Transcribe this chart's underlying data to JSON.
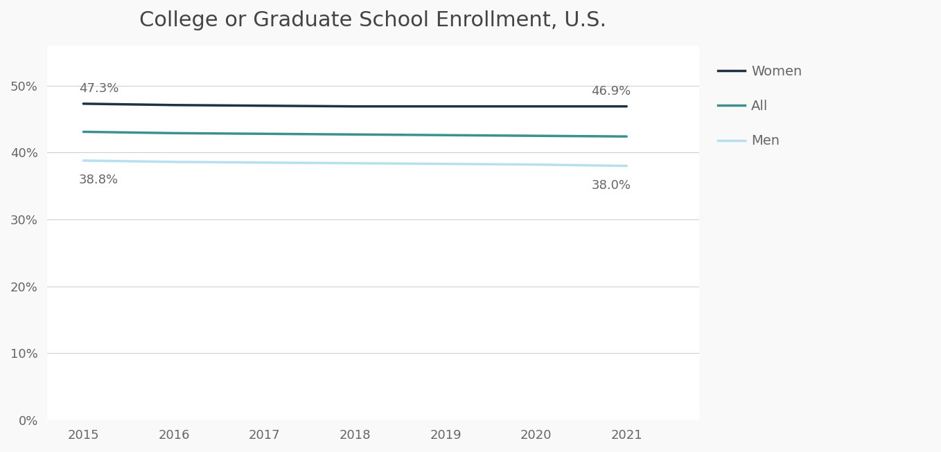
{
  "title": "College or Graduate School Enrollment, U.S.",
  "years": [
    2015,
    2016,
    2017,
    2018,
    2019,
    2020,
    2021
  ],
  "series_order": [
    "Women",
    "All",
    "Men"
  ],
  "series": {
    "Women": {
      "values": [
        0.473,
        0.471,
        0.47,
        0.469,
        0.469,
        0.469,
        0.469
      ],
      "color": "#1c3345",
      "linewidth": 2.5,
      "label": "Women",
      "start_label": "47.3%",
      "end_label": "46.9%"
    },
    "All": {
      "values": [
        0.431,
        0.429,
        0.428,
        0.427,
        0.426,
        0.425,
        0.424
      ],
      "color": "#3d9090",
      "linewidth": 2.5,
      "label": "All",
      "start_label": null,
      "end_label": null
    },
    "Men": {
      "values": [
        0.388,
        0.386,
        0.385,
        0.384,
        0.383,
        0.382,
        0.38
      ],
      "color": "#b8dff0",
      "linewidth": 2.5,
      "label": "Men",
      "start_label": "38.8%",
      "end_label": "38.0%"
    }
  },
  "ylim": [
    0,
    0.56
  ],
  "yticks": [
    0.0,
    0.1,
    0.2,
    0.3,
    0.4,
    0.5
  ],
  "xlim": [
    2014.6,
    2021.8
  ],
  "background_color": "#ffffff",
  "figure_facecolor": "#f9f9f9",
  "border_color": "#d8d8d8",
  "grid_color": "#d0d0d0",
  "title_fontsize": 22,
  "tick_fontsize": 13,
  "annotation_fontsize": 13,
  "legend_fontsize": 14,
  "text_color": "#666666",
  "title_color": "#444444"
}
